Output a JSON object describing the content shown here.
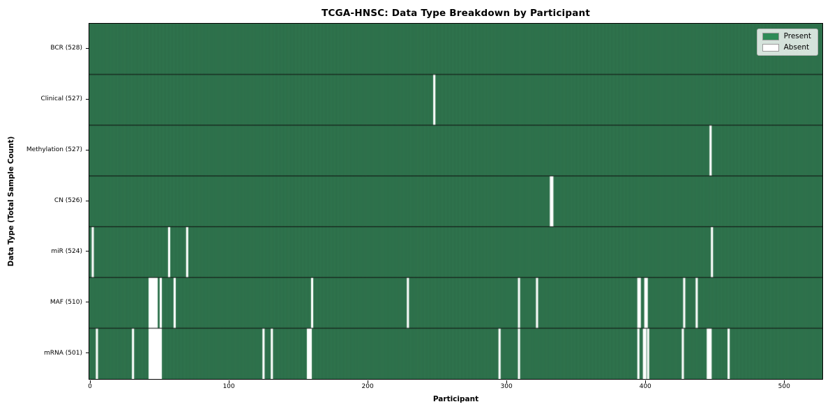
{
  "figure": {
    "title": "TCGA-HNSC: Data Type Breakdown by Participant",
    "xlabel": "Participant",
    "ylabel": "Data Type (Total Sample Count)"
  },
  "chart_data": {
    "type": "heatmap",
    "title": "TCGA-HNSC: Data Type Breakdown by Participant",
    "xlabel": "Participant",
    "ylabel": "Data Type (Total Sample Count)",
    "n_participants": 528,
    "xlim": [
      -0.5,
      527.5
    ],
    "x_ticks": [
      0,
      100,
      200,
      300,
      400,
      500
    ],
    "grid": false,
    "value_encoding": {
      "present": 1,
      "absent": 0
    },
    "rows": [
      {
        "label": "BCR (528)",
        "data_type": "BCR",
        "present_count": 528,
        "absent_count": 0,
        "absent_participants": []
      },
      {
        "label": "Clinical (527)",
        "data_type": "Clinical",
        "present_count": 527,
        "absent_count": 1,
        "absent_participants": [
          248
        ]
      },
      {
        "label": "Methylation (527)",
        "data_type": "Methylation",
        "present_count": 527,
        "absent_count": 1,
        "absent_participants": [
          447
        ]
      },
      {
        "label": "CN (526)",
        "data_type": "CN",
        "present_count": 526,
        "absent_count": 2,
        "absent_participants": [
          332,
          333
        ]
      },
      {
        "label": "miR (524)",
        "data_type": "miR",
        "present_count": 524,
        "absent_count": 4,
        "absent_participants": [
          2,
          57,
          70,
          448
        ]
      },
      {
        "label": "MAF (510)",
        "data_type": "MAF",
        "present_count": 510,
        "absent_count": 18,
        "absent_participants": [
          43,
          44,
          45,
          46,
          47,
          48,
          51,
          61,
          160,
          229,
          309,
          322,
          395,
          396,
          400,
          401,
          428,
          437
        ]
      },
      {
        "label": "mRNA (501)",
        "data_type": "mRNA",
        "present_count": 501,
        "absent_count": 27,
        "absent_participants": [
          5,
          31,
          43,
          44,
          45,
          46,
          47,
          48,
          49,
          50,
          51,
          125,
          131,
          157,
          158,
          159,
          295,
          309,
          395,
          399,
          400,
          402,
          427,
          445,
          446,
          447,
          460
        ]
      }
    ],
    "legend": {
      "position": "upper right",
      "entries": [
        {
          "label": "Present",
          "color": "#2e8b57"
        },
        {
          "label": "Absent",
          "color": "#ffffff"
        }
      ]
    },
    "colors": {
      "present": "#2e8b57",
      "present_base": "#358257",
      "cell_edge_overlay": "rgba(0,0,0,0.32)",
      "absent": "#ffffff",
      "row_divider": "#101010",
      "axis": "#000000"
    }
  }
}
